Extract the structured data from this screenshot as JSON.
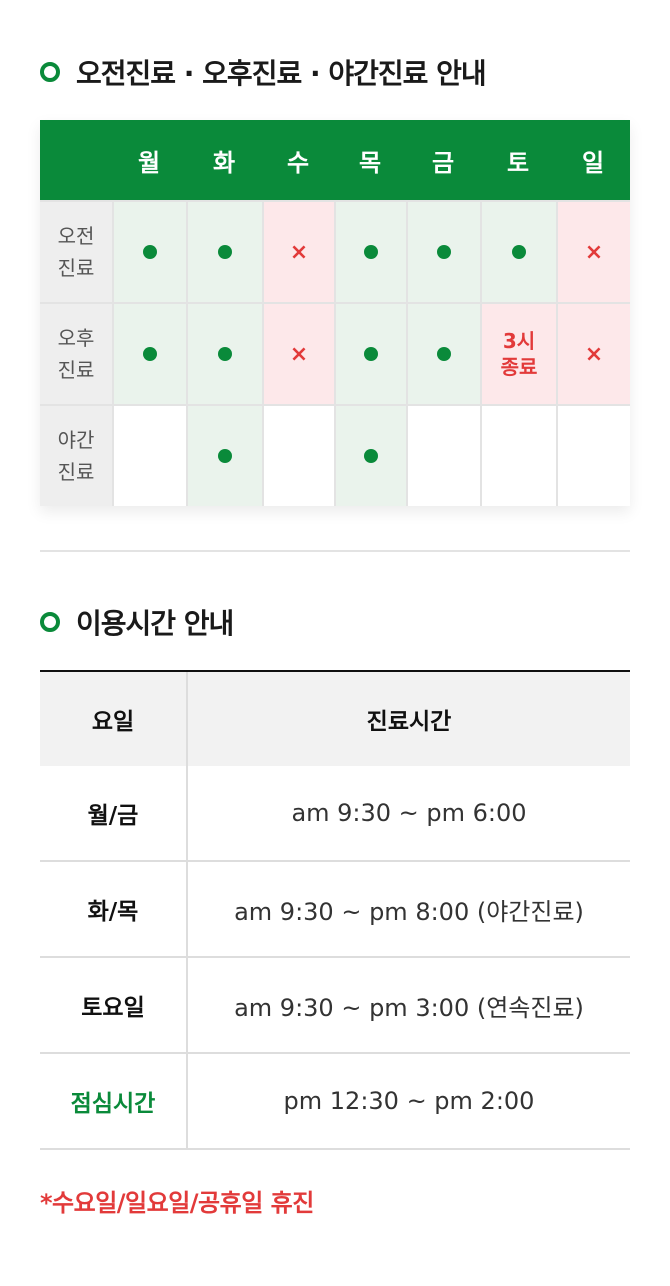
{
  "section1": {
    "title": "오전진료 · 오후진료 · 야간진료 안내"
  },
  "schedule": {
    "days": [
      "월",
      "화",
      "수",
      "목",
      "금",
      "토",
      "일"
    ],
    "rows": [
      {
        "label": "오전\n진료",
        "cells": [
          "open",
          "open",
          "closed",
          "open",
          "open",
          "open",
          "closed"
        ]
      },
      {
        "label": "오후\n진료",
        "cells": [
          "open",
          "open",
          "closed",
          "open",
          "open",
          "3시\n종료",
          "closed"
        ]
      },
      {
        "label": "야간\n진료",
        "cells": [
          "",
          "open",
          "",
          "open",
          "",
          "",
          ""
        ]
      }
    ],
    "closed_mark": "×",
    "colors": {
      "brand": "#0a8a3a",
      "closed": "#e23a3a",
      "open_bg": "#eaf3ec",
      "closed_bg": "#fde8ea"
    }
  },
  "section2": {
    "title": "이용시간 안내"
  },
  "hours": {
    "header": {
      "day": "요일",
      "time": "진료시간"
    },
    "rows": [
      {
        "day": "월/금",
        "time": "am 9:30 ~ pm 6:00"
      },
      {
        "day": "화/목",
        "time": "am 9:30 ~ pm 8:00 (야간진료)"
      },
      {
        "day": "토요일",
        "time": "am 9:30 ~ pm 3:00 (연속진료)"
      },
      {
        "day": "점심시간",
        "time": "pm 12:30 ~ pm 2:00"
      }
    ]
  },
  "footnote": "*수요일/일요일/공휴일 휴진"
}
